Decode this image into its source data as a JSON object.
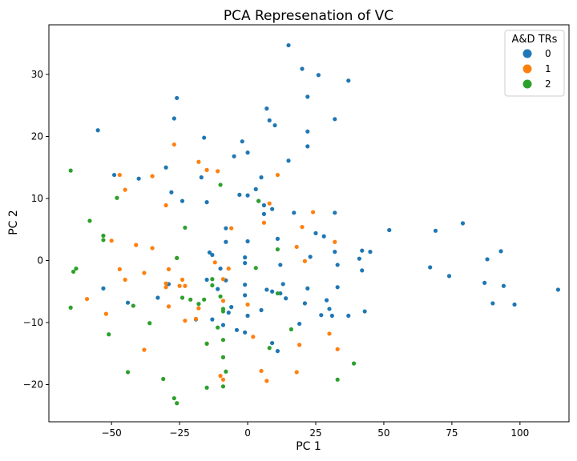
{
  "chart_data": {
    "type": "scatter",
    "title": "PCA Represenation of VC",
    "xlabel": "PC 1",
    "ylabel": "PC 2",
    "xlim": [
      -73,
      118
    ],
    "ylim": [
      -26,
      38
    ],
    "xticks": [
      -50,
      -25,
      0,
      25,
      50,
      75,
      100
    ],
    "yticks": [
      -20,
      -10,
      0,
      10,
      20,
      30
    ],
    "legend": {
      "title": "A&D TRs",
      "position": "top-right"
    },
    "grid": false,
    "series": [
      {
        "name": "0",
        "color": "#1f77b4",
        "points": [
          [
            15,
            34.7
          ],
          [
            20,
            30.9
          ],
          [
            26,
            29.9
          ],
          [
            37,
            29
          ],
          [
            -26,
            26.2
          ],
          [
            22,
            26.4
          ],
          [
            7,
            24.5
          ],
          [
            -27,
            22.9
          ],
          [
            32,
            22.8
          ],
          [
            8,
            22.6
          ],
          [
            10,
            21.8
          ],
          [
            -55,
            21
          ],
          [
            22,
            20.8
          ],
          [
            -16,
            19.8
          ],
          [
            -2,
            19.2
          ],
          [
            22,
            18.4
          ],
          [
            0,
            17.4
          ],
          [
            -5,
            16.8
          ],
          [
            15,
            16.1
          ],
          [
            -30,
            15
          ],
          [
            -49,
            13.8
          ],
          [
            -40,
            13.2
          ],
          [
            -17,
            13.4
          ],
          [
            5,
            13.4
          ],
          [
            -28,
            11
          ],
          [
            3,
            11.5
          ],
          [
            -3,
            10.6
          ],
          [
            0,
            10.5
          ],
          [
            4,
            9.6
          ],
          [
            -24,
            9.6
          ],
          [
            -15,
            9.4
          ],
          [
            6,
            8.9
          ],
          [
            9,
            8.3
          ],
          [
            6,
            7.5
          ],
          [
            17,
            7.7
          ],
          [
            32,
            7.7
          ],
          [
            -8,
            5.2
          ],
          [
            79,
            6
          ],
          [
            52,
            4.9
          ],
          [
            69,
            4.8
          ],
          [
            25,
            4.4
          ],
          [
            28,
            3.9
          ],
          [
            11,
            3.5
          ],
          [
            -8,
            3
          ],
          [
            0,
            3.1
          ],
          [
            42,
            1.6
          ],
          [
            45,
            1.4
          ],
          [
            32,
            1.4
          ],
          [
            93,
            1.5
          ],
          [
            -14,
            1.3
          ],
          [
            -13,
            0.9
          ],
          [
            -1,
            0.5
          ],
          [
            23,
            0.6
          ],
          [
            41,
            0.3
          ],
          [
            88,
            0.2
          ],
          [
            -1,
            -0.4
          ],
          [
            12,
            -0.7
          ],
          [
            33,
            -0.7
          ],
          [
            67,
            -1.1
          ],
          [
            -10,
            -1.3
          ],
          [
            42,
            -1.6
          ],
          [
            74,
            -2.5
          ],
          [
            -15,
            -3.1
          ],
          [
            -8,
            -3.2
          ],
          [
            -29,
            -3.8
          ],
          [
            -1,
            -3.9
          ],
          [
            13,
            -3.8
          ],
          [
            87,
            -3.6
          ],
          [
            -53,
            -4.5
          ],
          [
            94,
            -4.1
          ],
          [
            -11,
            -4.6
          ],
          [
            7,
            -4.7
          ],
          [
            33,
            -4.3
          ],
          [
            22,
            -4.5
          ],
          [
            9,
            -5
          ],
          [
            12,
            -5.3
          ],
          [
            -1,
            -5.6
          ],
          [
            -33,
            -6
          ],
          [
            14,
            -6.1
          ],
          [
            29,
            -6.4
          ],
          [
            21,
            -6.9
          ],
          [
            -44,
            -6.8
          ],
          [
            90,
            -6.9
          ],
          [
            98,
            -7.1
          ],
          [
            -6,
            -7.5
          ],
          [
            30,
            -7.8
          ],
          [
            5,
            -8
          ],
          [
            43,
            -8.2
          ],
          [
            -7,
            -8.4
          ],
          [
            27,
            -8.8
          ],
          [
            31,
            -8.9
          ],
          [
            37,
            -8.9
          ],
          [
            0,
            -8.9
          ],
          [
            -19,
            -9.5
          ],
          [
            -13,
            -9.5
          ],
          [
            -9,
            -10.4
          ],
          [
            19,
            -10.2
          ],
          [
            -4,
            -11.2
          ],
          [
            -1,
            -11.6
          ],
          [
            9,
            -13.3
          ],
          [
            11,
            -14.6
          ],
          [
            114,
            -4.7
          ]
        ]
      },
      {
        "name": "1",
        "color": "#ff7f0e",
        "points": [
          [
            -27,
            18.7
          ],
          [
            -18,
            15.9
          ],
          [
            -15,
            14.6
          ],
          [
            -11,
            14.4
          ],
          [
            -47,
            13.8
          ],
          [
            -35,
            13.6
          ],
          [
            11,
            13.8
          ],
          [
            -45,
            11.4
          ],
          [
            -30,
            8.9
          ],
          [
            8,
            9.2
          ],
          [
            24,
            7.8
          ],
          [
            6,
            6.1
          ],
          [
            -6,
            5.2
          ],
          [
            20,
            5.4
          ],
          [
            -50,
            3.2
          ],
          [
            -41,
            2.5
          ],
          [
            -35,
            2
          ],
          [
            32,
            3
          ],
          [
            -26,
            0.4
          ],
          [
            18,
            2.2
          ],
          [
            -12,
            -0.3
          ],
          [
            21,
            -0.1
          ],
          [
            -47,
            -1.4
          ],
          [
            -38,
            -2
          ],
          [
            -29,
            -1.4
          ],
          [
            -45,
            -3.1
          ],
          [
            -24,
            -3.1
          ],
          [
            -9,
            -3
          ],
          [
            -30,
            -3.7
          ],
          [
            -23,
            -4.1
          ],
          [
            -30,
            -4.3
          ],
          [
            -59,
            -6.2
          ],
          [
            -9,
            -6.5
          ],
          [
            0,
            -7.1
          ],
          [
            -29,
            -7.4
          ],
          [
            -18,
            -7.7
          ],
          [
            -52,
            -8.6
          ],
          [
            -23,
            -9.7
          ],
          [
            -19,
            -9.4
          ],
          [
            30,
            -11.8
          ],
          [
            2,
            -12.3
          ],
          [
            -15,
            -13.4
          ],
          [
            19,
            -13.6
          ],
          [
            -38,
            -14.4
          ],
          [
            33,
            -14.3
          ],
          [
            5,
            -17.8
          ],
          [
            18,
            -18
          ],
          [
            -10,
            -18.6
          ],
          [
            -9,
            -19.2
          ],
          [
            7,
            -19.4
          ],
          [
            -25,
            -4.1
          ],
          [
            -7,
            -1.3
          ]
        ]
      },
      {
        "name": "2",
        "color": "#2ca02c",
        "points": [
          [
            -65,
            14.5
          ],
          [
            -10,
            12.2
          ],
          [
            -48,
            10.1
          ],
          [
            -58,
            6.4
          ],
          [
            -23,
            5.3
          ],
          [
            -53,
            4
          ],
          [
            -53,
            3.3
          ],
          [
            -26,
            0.4
          ],
          [
            3,
            -1.2
          ],
          [
            -13,
            -3
          ],
          [
            -63,
            -1.3
          ],
          [
            -64,
            -1.8
          ],
          [
            -13,
            -4
          ],
          [
            -24,
            -6
          ],
          [
            -21,
            -6.3
          ],
          [
            -18,
            -7
          ],
          [
            -10,
            -5.8
          ],
          [
            -9,
            -7.8
          ],
          [
            -42,
            -7.3
          ],
          [
            -65,
            -7.6
          ],
          [
            -9,
            -8.2
          ],
          [
            -36,
            -10.1
          ],
          [
            -11,
            -10.8
          ],
          [
            11,
            -5.3
          ],
          [
            16,
            -11.1
          ],
          [
            -51,
            -11.9
          ],
          [
            -9,
            -12.8
          ],
          [
            -15,
            -13.4
          ],
          [
            8,
            -14.1
          ],
          [
            -9,
            -15.6
          ],
          [
            39,
            -16.6
          ],
          [
            -44,
            -18
          ],
          [
            -8,
            -17.9
          ],
          [
            -31,
            -19.1
          ],
          [
            33,
            -19.2
          ],
          [
            -15,
            -20.5
          ],
          [
            -9,
            -20.3
          ],
          [
            -27,
            -22.2
          ],
          [
            -26,
            -23
          ],
          [
            11,
            1.8
          ],
          [
            -16,
            -6.3
          ],
          [
            4,
            9.6
          ]
        ]
      }
    ]
  }
}
